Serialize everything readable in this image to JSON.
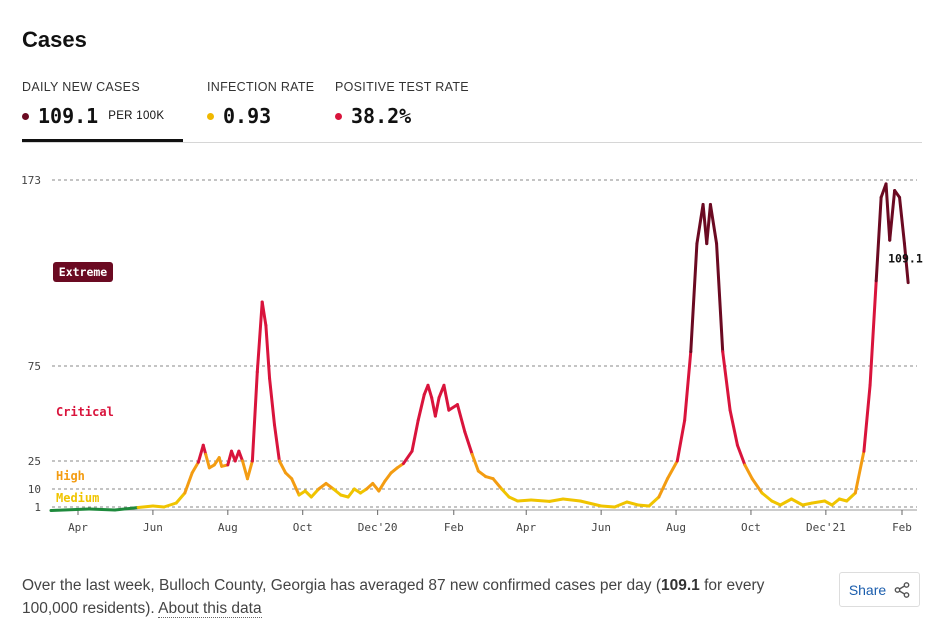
{
  "title": "Cases",
  "metrics": [
    {
      "label": "DAILY NEW CASES",
      "value": "109.1",
      "unit": "PER 100K",
      "dot_color": "#6b0a22"
    },
    {
      "label": "INFECTION RATE",
      "value": "0.93",
      "dot_color": "#f0b800"
    },
    {
      "label": "POSITIVE TEST RATE",
      "value": "38.2%",
      "dot_color": "#d9143c"
    }
  ],
  "footer": {
    "text_before": "Over the last week, Bulloch County, Georgia has averaged 87 new confirmed cases per day (",
    "bold_value": "109.1",
    "text_after": " for every 100,000 residents).",
    "link_label": "About this data"
  },
  "share": {
    "label": "Share",
    "icon": "share-icon"
  },
  "chart_data": {
    "type": "line",
    "title": "",
    "xlabel": "",
    "ylabel": "",
    "x_ticks": [
      "Apr",
      "Jun",
      "Aug",
      "Oct",
      "Dec'20",
      "Feb",
      "Apr",
      "Jun",
      "Aug",
      "Oct",
      "Dec'21",
      "Feb"
    ],
    "x_tick_dates": [
      "2020-04-01",
      "2020-06-01",
      "2020-08-01",
      "2020-10-01",
      "2020-12-01",
      "2021-02-01",
      "2021-04-01",
      "2021-06-01",
      "2021-08-01",
      "2021-10-01",
      "2021-12-01",
      "2022-02-01"
    ],
    "y_ticks": [
      1,
      10,
      25,
      75,
      173
    ],
    "ylim": [
      0,
      173
    ],
    "grid": true,
    "risk_levels": [
      {
        "label": "Extreme",
        "color": "#6b0a22"
      },
      {
        "label": "Critical",
        "color": "#d9143c"
      },
      {
        "label": "High",
        "color": "#f39c12"
      },
      {
        "label": "Medium",
        "color": "#f0c400"
      }
    ],
    "end_label": "109.1",
    "series": [
      {
        "points": [
          [
            "2020-03-10",
            0.3
          ],
          [
            "2020-04-10",
            0.6
          ],
          [
            "2020-05-01",
            0.4
          ],
          [
            "2020-05-20",
            0.9
          ],
          [
            "2020-06-01",
            1.5
          ],
          [
            "2020-06-10",
            1.0
          ],
          [
            "2020-06-20",
            3
          ],
          [
            "2020-06-27",
            8
          ],
          [
            "2020-07-03",
            17
          ],
          [
            "2020-07-08",
            24
          ],
          [
            "2020-07-12",
            30
          ],
          [
            "2020-07-14",
            27
          ],
          [
            "2020-07-17",
            20
          ],
          [
            "2020-07-21",
            22
          ],
          [
            "2020-07-25",
            26
          ],
          [
            "2020-07-27",
            21
          ],
          [
            "2020-08-01",
            22
          ],
          [
            "2020-08-04",
            28
          ],
          [
            "2020-08-07",
            25
          ],
          [
            "2020-08-10",
            28
          ],
          [
            "2020-08-13",
            25
          ],
          [
            "2020-08-17",
            14
          ],
          [
            "2020-08-21",
            25
          ],
          [
            "2020-08-25",
            70
          ],
          [
            "2020-08-29",
            100
          ],
          [
            "2020-09-01",
            90
          ],
          [
            "2020-09-04",
            65
          ],
          [
            "2020-09-08",
            38
          ],
          [
            "2020-09-12",
            25
          ],
          [
            "2020-09-17",
            17
          ],
          [
            "2020-09-22",
            14
          ],
          [
            "2020-09-28",
            7
          ],
          [
            "2020-10-03",
            9
          ],
          [
            "2020-10-08",
            6
          ],
          [
            "2020-10-14",
            10
          ],
          [
            "2020-10-20",
            12
          ],
          [
            "2020-10-26",
            10
          ],
          [
            "2020-11-01",
            7
          ],
          [
            "2020-11-07",
            6
          ],
          [
            "2020-11-12",
            10
          ],
          [
            "2020-11-17",
            8
          ],
          [
            "2020-11-22",
            10
          ],
          [
            "2020-11-27",
            12
          ],
          [
            "2020-12-02",
            9
          ],
          [
            "2020-12-07",
            13
          ],
          [
            "2020-12-12",
            17
          ],
          [
            "2020-12-17",
            20
          ],
          [
            "2020-12-22",
            23
          ],
          [
            "2020-12-29",
            28
          ],
          [
            "2021-01-03",
            40
          ],
          [
            "2021-01-08",
            54
          ],
          [
            "2021-01-11",
            60
          ],
          [
            "2021-01-14",
            52
          ],
          [
            "2021-01-17",
            42
          ],
          [
            "2021-01-20",
            52
          ],
          [
            "2021-01-24",
            60
          ],
          [
            "2021-01-28",
            45
          ],
          [
            "2021-02-04",
            48
          ],
          [
            "2021-02-10",
            35
          ],
          [
            "2021-02-16",
            27
          ],
          [
            "2021-02-21",
            18
          ],
          [
            "2021-02-27",
            15
          ],
          [
            "2021-03-05",
            14
          ],
          [
            "2021-03-12",
            10
          ],
          [
            "2021-03-18",
            6
          ],
          [
            "2021-03-25",
            4
          ],
          [
            "2021-04-05",
            4.5
          ],
          [
            "2021-04-20",
            3.8
          ],
          [
            "2021-05-01",
            5
          ],
          [
            "2021-05-15",
            4
          ],
          [
            "2021-06-01",
            1.5
          ],
          [
            "2021-06-12",
            1.0
          ],
          [
            "2021-06-22",
            3.5
          ],
          [
            "2021-07-01",
            2
          ],
          [
            "2021-07-10",
            1.5
          ],
          [
            "2021-07-18",
            6
          ],
          [
            "2021-07-25",
            14
          ],
          [
            "2021-08-02",
            25
          ],
          [
            "2021-08-08",
            40
          ],
          [
            "2021-08-13",
            80
          ],
          [
            "2021-08-18",
            130
          ],
          [
            "2021-08-23",
            155
          ],
          [
            "2021-08-26",
            130
          ],
          [
            "2021-08-29",
            155
          ],
          [
            "2021-09-03",
            130
          ],
          [
            "2021-09-08",
            80
          ],
          [
            "2021-09-14",
            45
          ],
          [
            "2021-09-20",
            30
          ],
          [
            "2021-09-26",
            22
          ],
          [
            "2021-10-02",
            14
          ],
          [
            "2021-10-10",
            8
          ],
          [
            "2021-10-18",
            4
          ],
          [
            "2021-10-25",
            2
          ],
          [
            "2021-11-03",
            5
          ],
          [
            "2021-11-12",
            2
          ],
          [
            "2021-11-20",
            3
          ],
          [
            "2021-11-30",
            4
          ],
          [
            "2021-12-06",
            2
          ],
          [
            "2021-12-12",
            5
          ],
          [
            "2021-12-18",
            4
          ],
          [
            "2021-12-25",
            8
          ],
          [
            "2022-01-01",
            28
          ],
          [
            "2022-01-06",
            60
          ],
          [
            "2022-01-11",
            110
          ],
          [
            "2022-01-15",
            160
          ],
          [
            "2022-01-19",
            170
          ],
          [
            "2022-01-22",
            132
          ],
          [
            "2022-01-26",
            165
          ],
          [
            "2022-01-30",
            160
          ],
          [
            "2022-02-03",
            130
          ],
          [
            "2022-02-06",
            109.1
          ]
        ]
      }
    ]
  }
}
